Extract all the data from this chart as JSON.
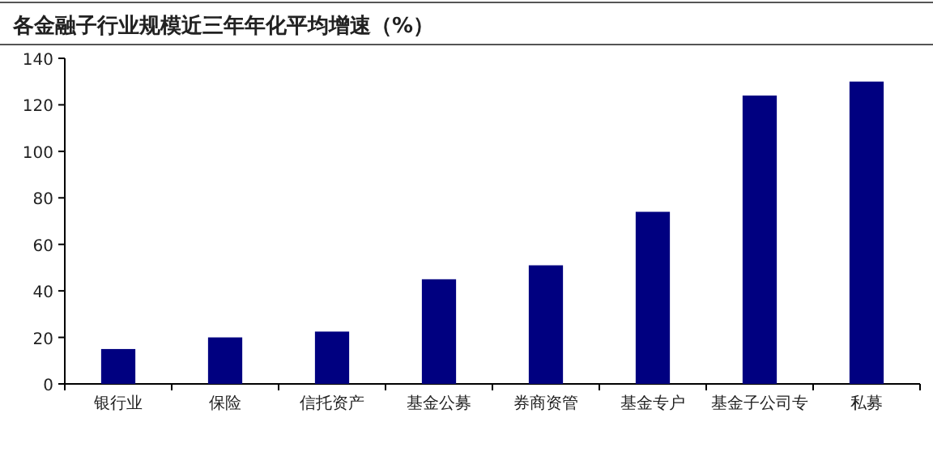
{
  "chart_data": {
    "type": "bar",
    "title": "各金融子行业规模近三年年化平均增速（%）",
    "categories": [
      "银行业",
      "保险",
      "信托资产",
      "基金公募",
      "券商资管",
      "基金专户",
      "基金子公司专",
      "私募"
    ],
    "values": [
      15,
      20,
      22.5,
      45,
      51,
      74,
      124,
      130
    ],
    "color": "#000080",
    "ylim": [
      0,
      140
    ],
    "yticks": [
      0,
      20,
      40,
      60,
      80,
      100,
      120,
      140
    ],
    "grid": false
  }
}
